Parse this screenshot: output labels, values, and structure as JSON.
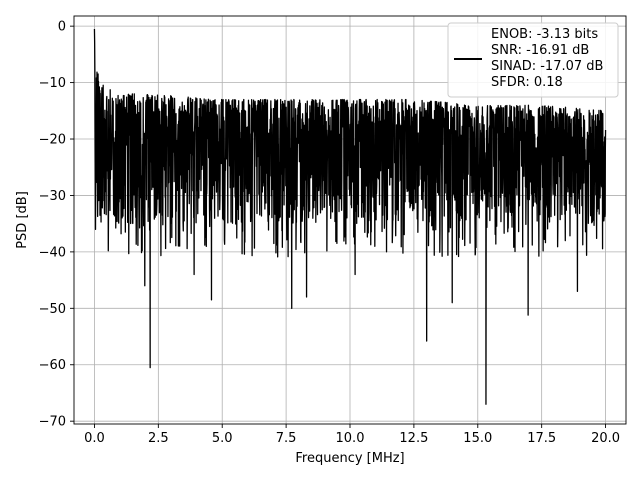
{
  "chart_data": {
    "type": "line",
    "title": "",
    "xlabel": "Frequency [MHz]",
    "ylabel": "PSD [dB]",
    "xlim": [
      -0.8,
      20.8
    ],
    "ylim": [
      -70.5,
      1.8
    ],
    "xticks": [
      0.0,
      2.5,
      5.0,
      7.5,
      10.0,
      12.5,
      15.0,
      17.5,
      20.0
    ],
    "xtick_labels": [
      "0.0",
      "2.5",
      "5.0",
      "7.5",
      "10.0",
      "12.5",
      "15.0",
      "17.5",
      "20.0"
    ],
    "yticks": [
      0,
      -10,
      -20,
      -30,
      -40,
      -50,
      -60,
      -70
    ],
    "ytick_labels": [
      "0",
      "−10",
      "−20",
      "−30",
      "−40",
      "−50",
      "−60",
      "−70"
    ],
    "grid": true,
    "legend_position": "top-right",
    "series": [
      {
        "color": "#000000",
        "x_range": [
          0.0,
          20.0
        ],
        "upper_envelope": [
          [
            0.0,
            -1
          ],
          [
            0.05,
            -6
          ],
          [
            0.2,
            -10
          ],
          [
            0.5,
            -11
          ],
          [
            1.0,
            -12
          ],
          [
            2.0,
            -12
          ],
          [
            5.0,
            -13
          ],
          [
            7.5,
            -13
          ],
          [
            10.0,
            -13
          ],
          [
            12.5,
            -13
          ],
          [
            15.0,
            -14
          ],
          [
            17.5,
            -14
          ],
          [
            20.0,
            -15
          ]
        ],
        "typical_band": [
          -35,
          -13
        ],
        "deep_dips": [
          [
            2.18,
            -60.5
          ],
          [
            15.32,
            -67
          ],
          [
            13.0,
            -55.8
          ],
          [
            7.72,
            -50
          ],
          [
            16.97,
            -51.2
          ],
          [
            4.58,
            -48.5
          ],
          [
            1.97,
            -46
          ],
          [
            8.3,
            -48
          ],
          [
            14.0,
            -49
          ],
          [
            10.2,
            -44
          ],
          [
            3.9,
            -44
          ],
          [
            18.9,
            -47
          ]
        ]
      }
    ],
    "legend_entries": [
      "ENOB: -3.13 bits",
      "SNR: -16.91 dB",
      "SINAD: -17.07 dB",
      "SFDR: 0.18"
    ]
  }
}
